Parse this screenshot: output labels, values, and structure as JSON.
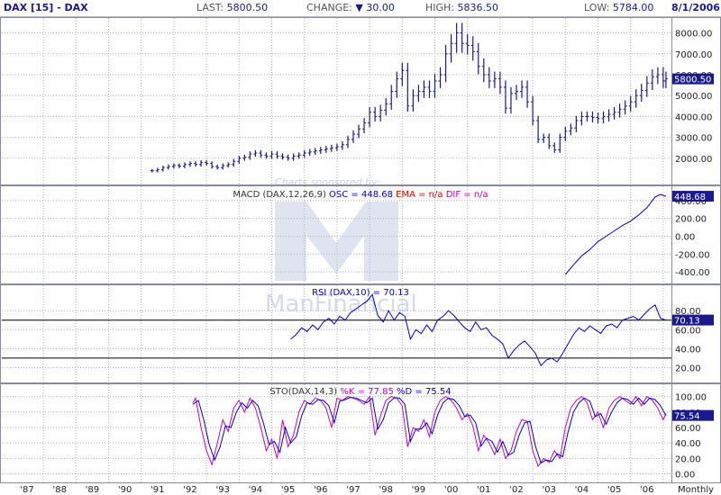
{
  "header": {
    "symbol": "DAX [15] - DAX",
    "last_label": "LAST:",
    "last_value": "5800.50",
    "change_label": "CHANGE:",
    "change_value": "30.00",
    "high_label": "HIGH:",
    "high_value": "5836.50",
    "low_label": "LOW:",
    "low_value": "5784.00",
    "date": "8/1/2006"
  },
  "watermark": {
    "line1": "Charts sponsored by:",
    "line2": "ManFinancial"
  },
  "colors": {
    "navy": "#1a1a8c",
    "blue": "#0000cc",
    "magenta": "#cc00cc",
    "red": "#dd0000",
    "grid": "#b0b0b0",
    "panel_border": "#8a8aa0",
    "watermark": "#c8d0e4"
  },
  "chart_data": [
    {
      "type": "ohlc",
      "title": "DAX [15] - DAX",
      "x": [
        "1990-11",
        "1991-01",
        "1991-03",
        "1991-05",
        "1991-07",
        "1991-09",
        "1991-11",
        "1992-01",
        "1992-03",
        "1992-05",
        "1992-07",
        "1992-09",
        "1992-11",
        "1993-01",
        "1993-03",
        "1993-05",
        "1993-07",
        "1993-09",
        "1993-11",
        "1994-01",
        "1994-03",
        "1994-05",
        "1994-07",
        "1994-09",
        "1994-11",
        "1995-01",
        "1995-03",
        "1995-05",
        "1995-07",
        "1995-09",
        "1995-11",
        "1996-01",
        "1996-03",
        "1996-05",
        "1996-07",
        "1996-09",
        "1996-11",
        "1997-01",
        "1997-03",
        "1997-05",
        "1997-07",
        "1997-09",
        "1997-11",
        "1998-01",
        "1998-03",
        "1998-05",
        "1998-07",
        "1998-09",
        "1998-11",
        "1999-01",
        "1999-03",
        "1999-05",
        "1999-07",
        "1999-09",
        "1999-11",
        "2000-01",
        "2000-03",
        "2000-05",
        "2000-07",
        "2000-09",
        "2000-11",
        "2001-01",
        "2001-03",
        "2001-05",
        "2001-07",
        "2001-09",
        "2001-11",
        "2002-01",
        "2002-03",
        "2002-05",
        "2002-07",
        "2002-09",
        "2002-11",
        "2003-01",
        "2003-03",
        "2003-05",
        "2003-07",
        "2003-09",
        "2003-11",
        "2004-01",
        "2004-03",
        "2004-05",
        "2004-07",
        "2004-09",
        "2004-11",
        "2005-01",
        "2005-03",
        "2005-05",
        "2005-07",
        "2005-09",
        "2005-11",
        "2006-01",
        "2006-03",
        "2006-05",
        "2006-07",
        "2006-08"
      ],
      "close": [
        1400,
        1450,
        1550,
        1600,
        1650,
        1620,
        1700,
        1750,
        1700,
        1800,
        1750,
        1600,
        1550,
        1650,
        1700,
        1850,
        2000,
        2050,
        2200,
        2250,
        2150,
        2100,
        2200,
        2100,
        2050,
        2000,
        2100,
        2150,
        2250,
        2300,
        2350,
        2400,
        2450,
        2500,
        2550,
        2650,
        2900,
        3150,
        3400,
        3700,
        4200,
        4000,
        4300,
        4600,
        5200,
        5800,
        6200,
        4500,
        5000,
        5200,
        5400,
        5200,
        5700,
        6000,
        7000,
        7500,
        8000,
        7500,
        7400,
        7100,
        6400,
        6000,
        5700,
        5800,
        5400,
        4400,
        5100,
        5200,
        5400,
        4700,
        3800,
        2900,
        3000,
        2600,
        2400,
        3000,
        3300,
        3450,
        3800,
        4000,
        4000,
        3950,
        3900,
        4000,
        4100,
        4200,
        4350,
        4500,
        4700,
        5000,
        5250,
        5600,
        5900,
        6000,
        5700,
        5800
      ],
      "ylabel": "",
      "ylim": [
        1000,
        8500
      ],
      "yticks": [
        "8000.00",
        "7000.00",
        "6000.00",
        "5000.00",
        "4000.00",
        "3000.00",
        "2000.00"
      ],
      "last_label": "5800.50"
    },
    {
      "type": "line",
      "title": "MACD (DAX,12,26,9)",
      "legend": [
        {
          "text": "MACD (DAX,12,26,9)",
          "color": "#333333"
        },
        {
          "text": "OSC = 448.68",
          "color": "#0000cc"
        },
        {
          "text": "EMA = n/a",
          "color": "#dd0000"
        },
        {
          "text": "DIF = n/a",
          "color": "#cc00cc"
        }
      ],
      "series": [
        {
          "name": "OSC",
          "x": [
            "2003-07",
            "2003-10",
            "2004-01",
            "2004-04",
            "2004-07",
            "2004-10",
            "2005-01",
            "2005-04",
            "2005-07",
            "2005-10",
            "2006-01",
            "2006-04",
            "2006-06",
            "2006-08"
          ],
          "values": [
            -430,
            -320,
            -220,
            -150,
            -60,
            0,
            60,
            120,
            170,
            240,
            320,
            440,
            470,
            448
          ]
        }
      ],
      "ylim": [
        -470,
        510
      ],
      "yticks": [
        "400.00",
        "200.00",
        "0.00",
        "-200.00",
        "-400.00"
      ],
      "last_label": "448.68"
    },
    {
      "type": "line",
      "title": "RSI (DAX,10)",
      "legend": [
        {
          "text": "RSI (DAX,10) = 70.13",
          "color": "#0000cc"
        }
      ],
      "series": [
        {
          "name": "RSI",
          "x": [
            "1995-02",
            "1995-04",
            "1995-06",
            "1995-08",
            "1995-10",
            "1995-12",
            "1996-02",
            "1996-04",
            "1996-06",
            "1996-08",
            "1996-10",
            "1996-12",
            "1997-02",
            "1997-04",
            "1997-06",
            "1997-08",
            "1997-10",
            "1997-12",
            "1998-02",
            "1998-04",
            "1998-06",
            "1998-08",
            "1998-10",
            "1998-12",
            "1999-02",
            "1999-04",
            "1999-06",
            "1999-08",
            "1999-10",
            "1999-12",
            "2000-02",
            "2000-04",
            "2000-06",
            "2000-08",
            "2000-10",
            "2000-12",
            "2001-02",
            "2001-04",
            "2001-06",
            "2001-08",
            "2001-10",
            "2001-12",
            "2002-02",
            "2002-04",
            "2002-06",
            "2002-08",
            "2002-10",
            "2002-12",
            "2003-02",
            "2003-04",
            "2003-06",
            "2003-08",
            "2003-10",
            "2003-12",
            "2004-02",
            "2004-04",
            "2004-06",
            "2004-08",
            "2004-10",
            "2004-12",
            "2005-02",
            "2005-04",
            "2005-06",
            "2005-08",
            "2005-10",
            "2005-12",
            "2006-02",
            "2006-04",
            "2006-06",
            "2006-08"
          ],
          "values": [
            50,
            55,
            62,
            58,
            65,
            60,
            68,
            72,
            66,
            74,
            70,
            78,
            82,
            86,
            90,
            97,
            75,
            68,
            80,
            70,
            78,
            74,
            50,
            60,
            56,
            65,
            58,
            70,
            74,
            80,
            75,
            68,
            62,
            58,
            68,
            60,
            62,
            54,
            50,
            45,
            30,
            38,
            44,
            48,
            42,
            35,
            22,
            28,
            30,
            26,
            35,
            45,
            55,
            62,
            58,
            64,
            60,
            56,
            64,
            66,
            62,
            70,
            72,
            74,
            70,
            76,
            82,
            86,
            72,
            70
          ]
        }
      ],
      "ylim": [
        10,
        102
      ],
      "yticks": [
        "80.00",
        "60.00",
        "40.00",
        "20.00"
      ],
      "hlines": [
        70,
        30
      ],
      "last_label": "70.13"
    },
    {
      "type": "line",
      "title": "STO(DAX,14,3)",
      "legend": [
        {
          "text": "STO(DAX,14,3)",
          "color": "#333333"
        },
        {
          "text": "%K = 77.85",
          "color": "#cc00cc"
        },
        {
          "text": "%D = 75.54",
          "color": "#0000cc"
        }
      ],
      "series": [
        {
          "name": "%K",
          "x": [
            "1992-02",
            "1992-03",
            "1992-05",
            "1992-07",
            "1992-09",
            "1992-11",
            "1993-01",
            "1993-03",
            "1993-05",
            "1993-07",
            "1993-09",
            "1993-11",
            "1994-01",
            "1994-03",
            "1994-05",
            "1994-07",
            "1994-09",
            "1994-11",
            "1995-01",
            "1995-03",
            "1995-05",
            "1995-07",
            "1995-09",
            "1995-11",
            "1996-01",
            "1996-03",
            "1996-05",
            "1996-07",
            "1996-09",
            "1996-11",
            "1997-01",
            "1997-03",
            "1997-05",
            "1997-07",
            "1997-09",
            "1997-11",
            "1998-01",
            "1998-03",
            "1998-05",
            "1998-07",
            "1998-09",
            "1998-11",
            "1999-01",
            "1999-03",
            "1999-05",
            "1999-07",
            "1999-09",
            "1999-11",
            "2000-01",
            "2000-03",
            "2000-05",
            "2000-07",
            "2000-09",
            "2000-11",
            "2001-01",
            "2001-03",
            "2001-05",
            "2001-07",
            "2001-09",
            "2001-11",
            "2002-01",
            "2002-03",
            "2002-05",
            "2002-07",
            "2002-09",
            "2002-11",
            "2003-01",
            "2003-03",
            "2003-05",
            "2003-07",
            "2003-09",
            "2003-11",
            "2004-01",
            "2004-03",
            "2004-05",
            "2004-07",
            "2004-09",
            "2004-11",
            "2005-01",
            "2005-03",
            "2005-05",
            "2005-07",
            "2005-09",
            "2005-11",
            "2006-01",
            "2006-03",
            "2006-05",
            "2006-07",
            "2006-08"
          ],
          "values": [
            92,
            98,
            60,
            30,
            12,
            40,
            70,
            55,
            85,
            95,
            80,
            98,
            85,
            60,
            30,
            45,
            20,
            70,
            35,
            50,
            80,
            95,
            90,
            98,
            95,
            85,
            60,
            98,
            95,
            100,
            98,
            95,
            90,
            100,
            50,
            75,
            95,
            100,
            98,
            88,
            35,
            60,
            55,
            70,
            48,
            80,
            95,
            100,
            95,
            85,
            70,
            78,
            62,
            30,
            50,
            40,
            25,
            45,
            20,
            30,
            55,
            70,
            68,
            30,
            10,
            20,
            15,
            30,
            20,
            60,
            85,
            95,
            100,
            92,
            70,
            80,
            60,
            85,
            95,
            100,
            95,
            90,
            100,
            88,
            100,
            95,
            85,
            70,
            78
          ]
        },
        {
          "name": "%D",
          "x": [
            "1992-02",
            "1992-04",
            "1992-06",
            "1992-08",
            "1992-10",
            "1992-12",
            "1993-02",
            "1993-04",
            "1993-06",
            "1993-08",
            "1993-10",
            "1993-12",
            "1994-02",
            "1994-04",
            "1994-06",
            "1994-08",
            "1994-10",
            "1994-12",
            "1995-02",
            "1995-04",
            "1995-06",
            "1995-08",
            "1995-10",
            "1995-12",
            "1996-02",
            "1996-04",
            "1996-06",
            "1996-08",
            "1996-10",
            "1996-12",
            "1997-02",
            "1997-04",
            "1997-06",
            "1997-08",
            "1997-10",
            "1997-12",
            "1998-02",
            "1998-04",
            "1998-06",
            "1998-08",
            "1998-10",
            "1998-12",
            "1999-02",
            "1999-04",
            "1999-06",
            "1999-08",
            "1999-10",
            "1999-12",
            "2000-02",
            "2000-04",
            "2000-06",
            "2000-08",
            "2000-10",
            "2000-12",
            "2001-02",
            "2001-04",
            "2001-06",
            "2001-08",
            "2001-10",
            "2001-12",
            "2002-02",
            "2002-04",
            "2002-06",
            "2002-08",
            "2002-10",
            "2002-12",
            "2003-02",
            "2003-04",
            "2003-06",
            "2003-08",
            "2003-10",
            "2003-12",
            "2004-02",
            "2004-04",
            "2004-06",
            "2004-08",
            "2004-10",
            "2004-12",
            "2005-02",
            "2005-04",
            "2005-06",
            "2005-08",
            "2005-10",
            "2005-12",
            "2006-02",
            "2006-04",
            "2006-06",
            "2006-08"
          ],
          "values": [
            90,
            95,
            70,
            38,
            18,
            35,
            62,
            60,
            80,
            92,
            85,
            95,
            88,
            65,
            38,
            42,
            28,
            60,
            40,
            48,
            75,
            92,
            90,
            96,
            95,
            88,
            66,
            94,
            96,
            99,
            98,
            95,
            92,
            98,
            58,
            70,
            92,
            98,
            98,
            90,
            42,
            58,
            58,
            66,
            52,
            76,
            92,
            98,
            96,
            88,
            74,
            76,
            66,
            36,
            46,
            42,
            28,
            42,
            24,
            28,
            50,
            66,
            68,
            36,
            14,
            18,
            16,
            26,
            22,
            54,
            80,
            92,
            98,
            94,
            74,
            78,
            64,
            80,
            92,
            98,
            96,
            90,
            98,
            90,
            98,
            96,
            88,
            75.5
          ]
        }
      ],
      "ylim": [
        -4,
        110
      ],
      "yticks": [
        "100.00",
        "80.00",
        "60.00",
        "40.00",
        "20.00",
        "0.00"
      ],
      "last_label": "75.54"
    }
  ],
  "x_axis": {
    "labels": [
      "'87",
      "'88",
      "'89",
      "'90",
      "'91",
      "'92",
      "'93",
      "'94",
      "'95",
      "'96",
      "'97",
      "'98",
      "'99",
      "'00",
      "'01",
      "'02",
      "'03",
      "'04",
      "'05",
      "'06"
    ],
    "interval_label": "Monthly"
  }
}
